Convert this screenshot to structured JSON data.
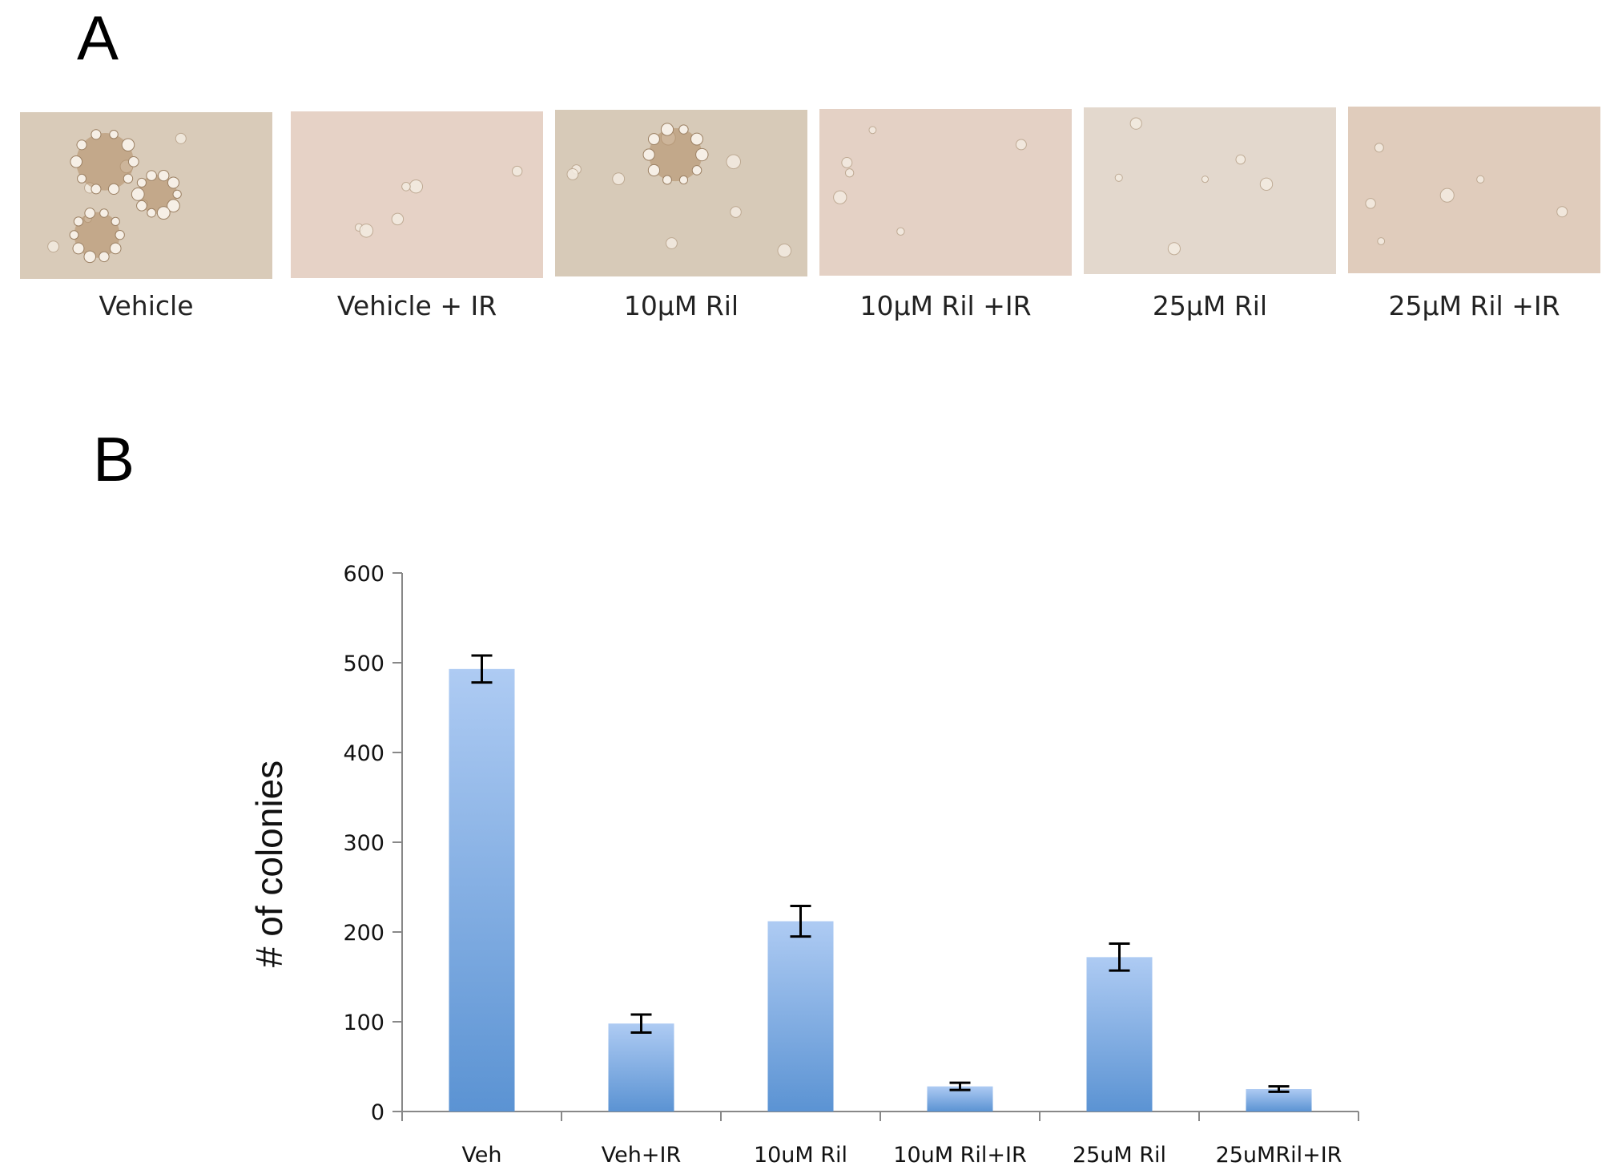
{
  "panel_a": {
    "letter": "A",
    "images": [
      {
        "caption": "Vehicle",
        "tint": "#d9cbb9",
        "colonies": "many-large"
      },
      {
        "caption": "Vehicle + IR",
        "tint": "#e6d2c6",
        "colonies": "few-small"
      },
      {
        "caption": "10μM Ril",
        "tint": "#d7cab8",
        "colonies": "several-medium"
      },
      {
        "caption": "10μM Ril +IR",
        "tint": "#e4d1c5",
        "colonies": "few-small"
      },
      {
        "caption": "25μM Ril",
        "tint": "#e3d8cd",
        "colonies": "few-small"
      },
      {
        "caption": "25μM Ril +IR",
        "tint": "#e0ccbc",
        "colonies": "few-small"
      }
    ]
  },
  "panel_b": {
    "letter": "B"
  },
  "chart_data": {
    "type": "bar",
    "title": "",
    "xlabel": "",
    "ylabel": "# of colonies",
    "ylim": [
      0,
      600
    ],
    "yticks": [
      0,
      100,
      200,
      300,
      400,
      500,
      600
    ],
    "categories": [
      "Veh",
      "Veh+IR",
      "10uM Ril",
      "10uM Ril+IR",
      "25uM Ril",
      "25uMRil+IR"
    ],
    "values": [
      493,
      98,
      212,
      28,
      172,
      25
    ],
    "errors": [
      15,
      10,
      17,
      4,
      15,
      3
    ],
    "bar_color_top": "#aecbf3",
    "bar_color_bottom": "#5b93d3",
    "grid": false,
    "legend": "none"
  }
}
